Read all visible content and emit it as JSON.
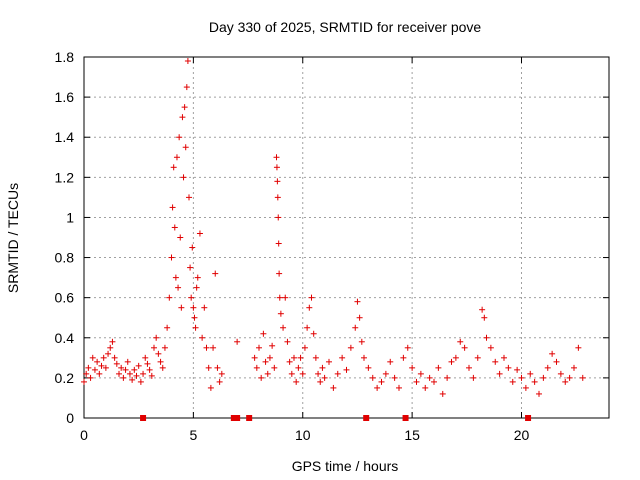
{
  "chart_data": {
    "type": "scatter",
    "title": "Day 330 of 2025, SRMTID for receiver pove",
    "xlabel": "GPS time / hours",
    "ylabel": "SRMTID / TECUs",
    "xlim": [
      0,
      24
    ],
    "ylim": [
      0,
      1.8
    ],
    "xticks": [
      0,
      5,
      10,
      15,
      20
    ],
    "yticks": [
      0,
      0.2,
      0.4,
      0.6,
      0.8,
      1,
      1.2,
      1.4,
      1.6,
      1.8
    ],
    "xtick_labels": [
      "0",
      "5",
      "10",
      "15",
      "20"
    ],
    "ytick_labels": [
      "0",
      "0.2",
      "0.4",
      "0.6",
      "0.8",
      "1",
      "1.2",
      "1.4",
      "1.6",
      "1.8"
    ],
    "grid": true,
    "marker": "+",
    "color": "#e00000",
    "series": [
      {
        "name": "SRMTID",
        "points": [
          [
            0.0,
            0.18
          ],
          [
            0.1,
            0.22
          ],
          [
            0.2,
            0.25
          ],
          [
            0.3,
            0.2
          ],
          [
            0.4,
            0.3
          ],
          [
            0.5,
            0.24
          ],
          [
            0.6,
            0.28
          ],
          [
            0.7,
            0.22
          ],
          [
            0.8,
            0.26
          ],
          [
            0.9,
            0.3
          ],
          [
            1.0,
            0.25
          ],
          [
            1.1,
            0.32
          ],
          [
            1.2,
            0.35
          ],
          [
            1.3,
            0.38
          ],
          [
            1.4,
            0.3
          ],
          [
            1.5,
            0.27
          ],
          [
            1.6,
            0.22
          ],
          [
            1.7,
            0.25
          ],
          [
            1.8,
            0.2
          ],
          [
            1.9,
            0.24
          ],
          [
            2.0,
            0.28
          ],
          [
            2.1,
            0.22
          ],
          [
            2.2,
            0.19
          ],
          [
            2.3,
            0.24
          ],
          [
            2.4,
            0.21
          ],
          [
            2.5,
            0.26
          ],
          [
            2.6,
            0.18
          ],
          [
            2.7,
            0.22
          ],
          [
            2.8,
            0.3
          ],
          [
            2.9,
            0.27
          ],
          [
            3.0,
            0.24
          ],
          [
            3.1,
            0.21
          ],
          [
            3.2,
            0.35
          ],
          [
            3.3,
            0.4
          ],
          [
            3.4,
            0.32
          ],
          [
            3.5,
            0.28
          ],
          [
            3.6,
            0.25
          ],
          [
            3.7,
            0.35
          ],
          [
            3.8,
            0.45
          ],
          [
            3.9,
            0.6
          ],
          [
            4.0,
            0.8
          ],
          [
            4.05,
            1.05
          ],
          [
            4.1,
            1.25
          ],
          [
            4.15,
            0.95
          ],
          [
            4.2,
            0.7
          ],
          [
            4.25,
            1.3
          ],
          [
            4.3,
            0.65
          ],
          [
            4.35,
            1.4
          ],
          [
            4.4,
            0.9
          ],
          [
            4.45,
            0.55
          ],
          [
            4.5,
            1.5
          ],
          [
            4.55,
            1.2
          ],
          [
            4.6,
            1.55
          ],
          [
            4.65,
            1.35
          ],
          [
            4.7,
            1.65
          ],
          [
            4.75,
            1.78
          ],
          [
            4.8,
            1.1
          ],
          [
            4.85,
            0.75
          ],
          [
            4.9,
            0.6
          ],
          [
            4.95,
            0.85
          ],
          [
            5.0,
            0.55
          ],
          [
            5.05,
            0.5
          ],
          [
            5.1,
            0.45
          ],
          [
            5.15,
            0.65
          ],
          [
            5.2,
            0.7
          ],
          [
            5.3,
            0.92
          ],
          [
            5.4,
            0.4
          ],
          [
            5.5,
            0.55
          ],
          [
            5.6,
            0.35
          ],
          [
            5.7,
            0.25
          ],
          [
            5.8,
            0.15
          ],
          [
            5.9,
            0.35
          ],
          [
            6.0,
            0.72
          ],
          [
            6.1,
            0.25
          ],
          [
            6.2,
            0.18
          ],
          [
            6.3,
            0.22
          ],
          [
            7.0,
            0.38
          ],
          [
            7.8,
            0.3
          ],
          [
            7.9,
            0.25
          ],
          [
            8.0,
            0.35
          ],
          [
            8.1,
            0.2
          ],
          [
            8.2,
            0.42
          ],
          [
            8.3,
            0.28
          ],
          [
            8.4,
            0.22
          ],
          [
            8.5,
            0.3
          ],
          [
            8.6,
            0.36
          ],
          [
            8.7,
            0.25
          ],
          [
            8.8,
            1.3
          ],
          [
            8.82,
            1.25
          ],
          [
            8.84,
            1.18
          ],
          [
            8.86,
            1.1
          ],
          [
            8.88,
            1.0
          ],
          [
            8.9,
            0.87
          ],
          [
            8.92,
            0.72
          ],
          [
            8.95,
            0.6
          ],
          [
            9.0,
            0.52
          ],
          [
            9.1,
            0.45
          ],
          [
            9.2,
            0.6
          ],
          [
            9.3,
            0.38
          ],
          [
            9.4,
            0.28
          ],
          [
            9.5,
            0.22
          ],
          [
            9.6,
            0.3
          ],
          [
            9.7,
            0.18
          ],
          [
            9.8,
            0.25
          ],
          [
            9.9,
            0.3
          ],
          [
            10.0,
            0.22
          ],
          [
            10.1,
            0.35
          ],
          [
            10.2,
            0.45
          ],
          [
            10.3,
            0.55
          ],
          [
            10.4,
            0.6
          ],
          [
            10.5,
            0.42
          ],
          [
            10.6,
            0.3
          ],
          [
            10.7,
            0.22
          ],
          [
            10.8,
            0.18
          ],
          [
            10.9,
            0.25
          ],
          [
            11.0,
            0.2
          ],
          [
            11.2,
            0.28
          ],
          [
            11.4,
            0.15
          ],
          [
            11.6,
            0.22
          ],
          [
            11.8,
            0.3
          ],
          [
            12.0,
            0.24
          ],
          [
            12.2,
            0.35
          ],
          [
            12.4,
            0.45
          ],
          [
            12.5,
            0.58
          ],
          [
            12.6,
            0.5
          ],
          [
            12.7,
            0.38
          ],
          [
            12.8,
            0.3
          ],
          [
            13.0,
            0.25
          ],
          [
            13.2,
            0.2
          ],
          [
            13.4,
            0.15
          ],
          [
            13.6,
            0.18
          ],
          [
            13.8,
            0.22
          ],
          [
            14.0,
            0.28
          ],
          [
            14.2,
            0.2
          ],
          [
            14.4,
            0.15
          ],
          [
            14.6,
            0.3
          ],
          [
            14.8,
            0.35
          ],
          [
            15.0,
            0.25
          ],
          [
            15.2,
            0.18
          ],
          [
            15.4,
            0.22
          ],
          [
            15.6,
            0.15
          ],
          [
            15.8,
            0.2
          ],
          [
            16.0,
            0.18
          ],
          [
            16.2,
            0.25
          ],
          [
            16.4,
            0.12
          ],
          [
            16.6,
            0.2
          ],
          [
            16.8,
            0.28
          ],
          [
            17.0,
            0.3
          ],
          [
            17.2,
            0.38
          ],
          [
            17.4,
            0.35
          ],
          [
            17.6,
            0.25
          ],
          [
            17.8,
            0.2
          ],
          [
            18.0,
            0.3
          ],
          [
            18.2,
            0.54
          ],
          [
            18.3,
            0.5
          ],
          [
            18.4,
            0.4
          ],
          [
            18.6,
            0.35
          ],
          [
            18.8,
            0.28
          ],
          [
            19.0,
            0.22
          ],
          [
            19.2,
            0.3
          ],
          [
            19.4,
            0.25
          ],
          [
            19.6,
            0.18
          ],
          [
            19.8,
            0.24
          ],
          [
            20.0,
            0.2
          ],
          [
            20.2,
            0.15
          ],
          [
            20.4,
            0.22
          ],
          [
            20.6,
            0.18
          ],
          [
            20.8,
            0.12
          ],
          [
            21.0,
            0.2
          ],
          [
            21.2,
            0.25
          ],
          [
            21.4,
            0.32
          ],
          [
            21.6,
            0.28
          ],
          [
            21.8,
            0.22
          ],
          [
            22.0,
            0.18
          ],
          [
            22.2,
            0.2
          ],
          [
            22.4,
            0.25
          ],
          [
            22.6,
            0.35
          ],
          [
            22.8,
            0.2
          ]
        ]
      }
    ],
    "gap_markers_x": [
      2.7,
      6.85,
      7.0,
      7.55,
      12.9,
      14.7,
      20.3
    ]
  }
}
